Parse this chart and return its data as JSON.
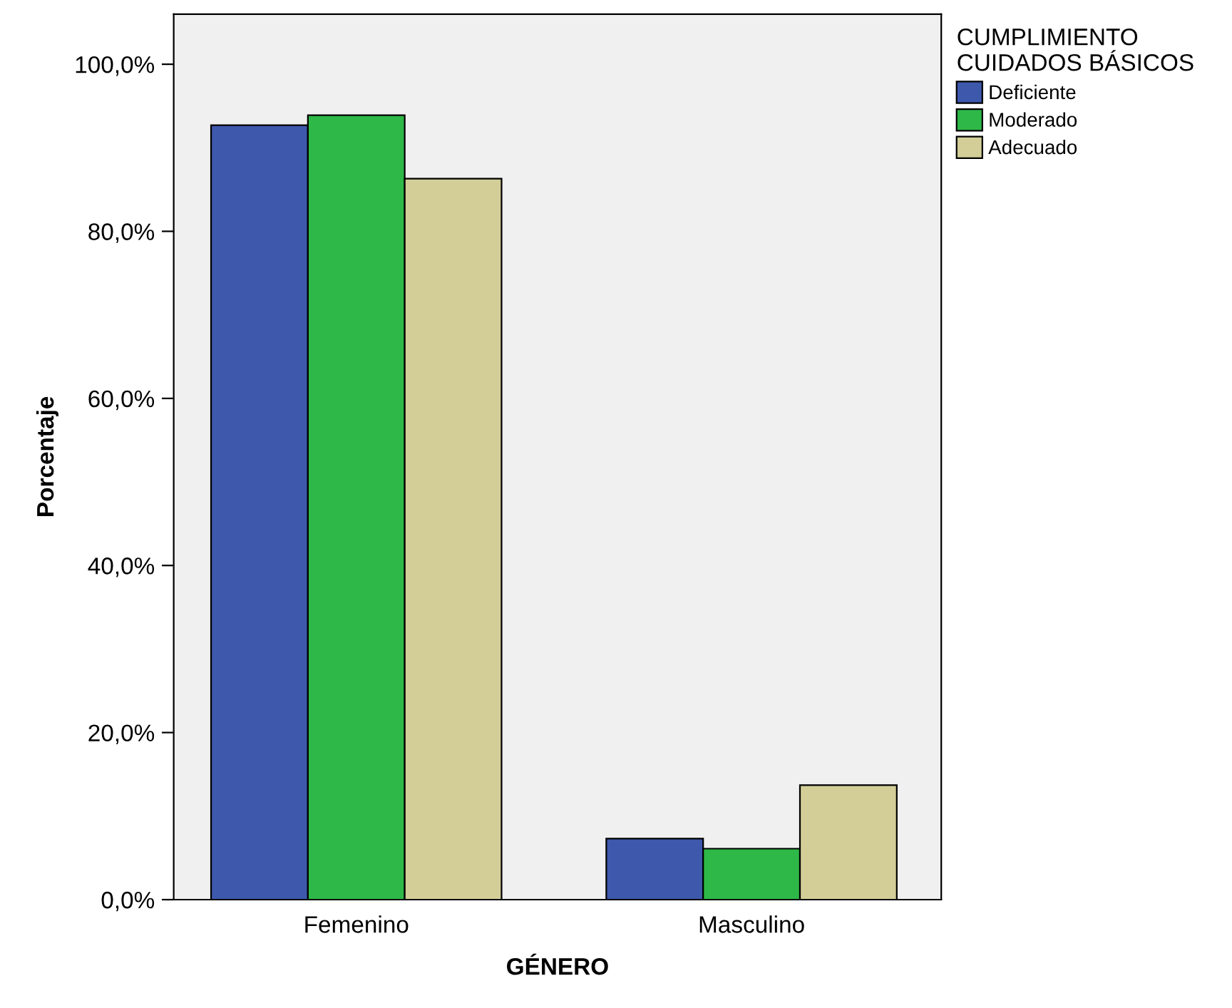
{
  "chart_data": {
    "type": "bar",
    "xlabel": "GÉNERO",
    "ylabel": "Porcentaje",
    "legend_title": "CUMPLIMIENTO\nCUIDADOS BÁSICOS",
    "categories": [
      "Femenino",
      "Masculino"
    ],
    "series": [
      {
        "name": "Deficiente",
        "color": "#3e58ac",
        "values": [
          92.7,
          7.3
        ]
      },
      {
        "name": "Moderado",
        "color": "#2eb848",
        "values": [
          93.9,
          6.1
        ]
      },
      {
        "name": "Adecuado",
        "color": "#d3ce97",
        "values": [
          86.3,
          13.7
        ]
      }
    ],
    "ylim": [
      0,
      106
    ],
    "yticks": [
      {
        "value": 0,
        "label": "0,0%"
      },
      {
        "value": 20,
        "label": "20,0%"
      },
      {
        "value": 40,
        "label": "40,0%"
      },
      {
        "value": 60,
        "label": "60,0%"
      },
      {
        "value": 80,
        "label": "80,0%"
      },
      {
        "value": 100,
        "label": "100,0%"
      }
    ],
    "grid": false,
    "legend": "top right"
  }
}
